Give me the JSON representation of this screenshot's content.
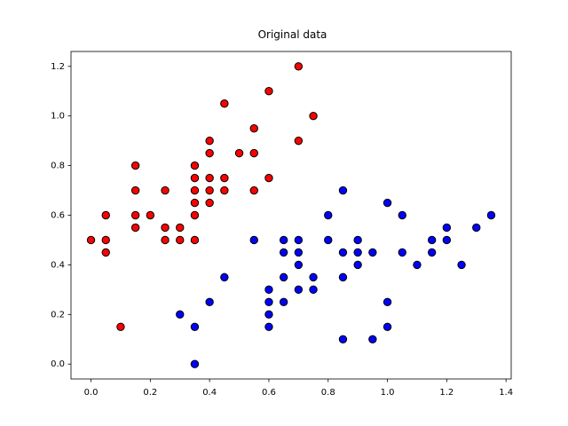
{
  "chart_data": {
    "type": "scatter",
    "title": "Original data",
    "xlim": [
      -0.0675,
      1.4175
    ],
    "ylim": [
      -0.06,
      1.26
    ],
    "xticks": [
      {
        "value": 0,
        "label": "0.0"
      },
      0.2,
      0.4,
      0.6,
      0.8,
      {
        "value": 1,
        "label": "1.0"
      },
      1.2,
      1.4
    ],
    "yticks": [
      {
        "value": 0,
        "label": "0.0"
      },
      0.2,
      0.4,
      0.6,
      0.8,
      {
        "value": 1,
        "label": "1.0"
      },
      1.2
    ],
    "grid": false,
    "series": [
      {
        "color": "#ff0000",
        "x": [
          0,
          0.05,
          0.05,
          0.05,
          0.1,
          0.15,
          0.15,
          0.15,
          0.15,
          0.2,
          0.25,
          0.25,
          0.25,
          0.3,
          0.3,
          0.35,
          0.35,
          0.35,
          0.35,
          0.35,
          0.35,
          0.4,
          0.4,
          0.4,
          0.4,
          0.4,
          0.45,
          0.45,
          0.45,
          0.5,
          0.55,
          0.55,
          0.55,
          0.6,
          0.6,
          0.7,
          0.7,
          0.75
        ],
        "y": [
          0.5,
          0.6,
          0.5,
          0.45,
          0.15,
          0.8,
          0.7,
          0.6,
          0.55,
          0.6,
          0.7,
          0.55,
          0.5,
          0.55,
          0.5,
          0.8,
          0.75,
          0.7,
          0.65,
          0.6,
          0.5,
          0.9,
          0.85,
          0.75,
          0.7,
          0.65,
          1.05,
          0.75,
          0.7,
          0.85,
          0.95,
          0.85,
          0.7,
          1.1,
          0.75,
          1.2,
          0.9,
          1.0
        ]
      },
      {
        "color": "#0000ff",
        "x": [
          0.3,
          0.35,
          0.35,
          0.4,
          0.45,
          0.55,
          0.6,
          0.6,
          0.6,
          0.6,
          0.65,
          0.65,
          0.65,
          0.65,
          0.7,
          0.7,
          0.7,
          0.7,
          0.75,
          0.75,
          0.8,
          0.8,
          0.85,
          0.85,
          0.85,
          0.85,
          0.9,
          0.9,
          0.9,
          0.95,
          0.95,
          1.0,
          1.0,
          1.0,
          1.05,
          1.05,
          1.1,
          1.15,
          1.15,
          1.2,
          1.2,
          1.25,
          1.3,
          1.35
        ],
        "y": [
          0.2,
          0.15,
          0,
          0.25,
          0.35,
          0.5,
          0.3,
          0.25,
          0.2,
          0.15,
          0.5,
          0.45,
          0.35,
          0.25,
          0.5,
          0.45,
          0.4,
          0.3,
          0.35,
          0.3,
          0.6,
          0.5,
          0.7,
          0.45,
          0.35,
          0.1,
          0.5,
          0.45,
          0.4,
          0.45,
          0.1,
          0.65,
          0.25,
          0.15,
          0.6,
          0.45,
          0.4,
          0.5,
          0.45,
          0.55,
          0.5,
          0.4,
          0.55,
          0.6
        ]
      }
    ]
  }
}
